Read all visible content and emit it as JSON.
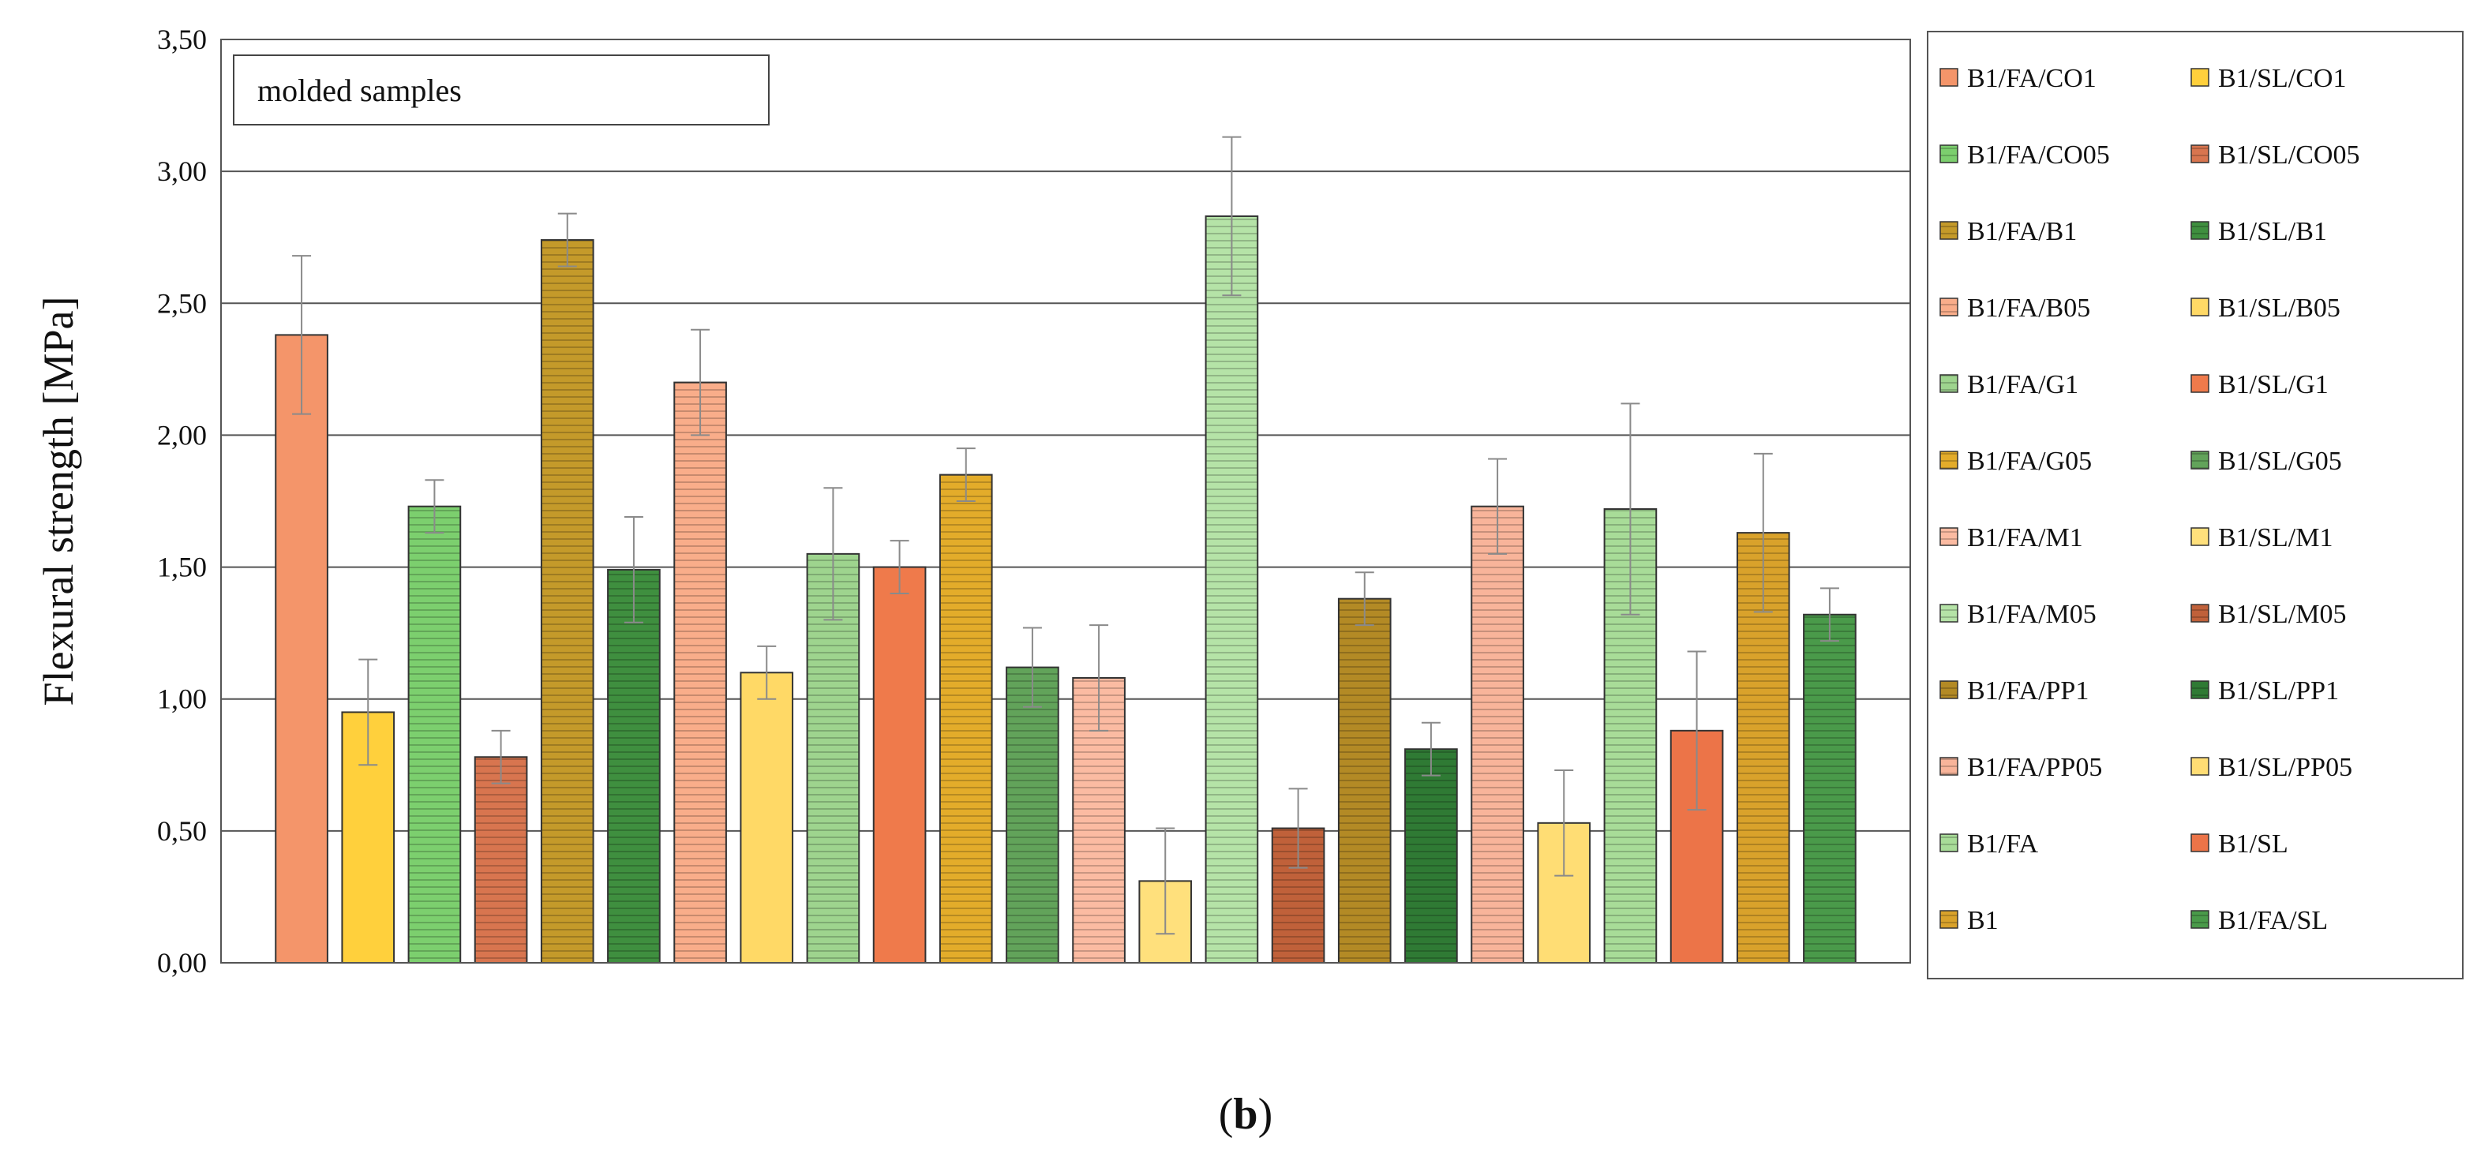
{
  "chart_data": {
    "type": "bar",
    "ylabel": "Flexural strength [MPa]",
    "ylim": [
      0,
      3.5
    ],
    "y_ticks": [
      "0,00",
      "0,50",
      "1,00",
      "1,50",
      "2,00",
      "2,50",
      "3,00",
      "3,50"
    ],
    "grid": "horizontal",
    "legend_position": "right",
    "annotation": "molded samples",
    "caption_letter": "b",
    "categories": [
      "B1/FA/CO1",
      "B1/SL/CO1",
      "B1/FA/CO05",
      "B1/SL/CO05",
      "B1/FA/B1",
      "B1/SL/B1",
      "B1/FA/B05",
      "B1/SL/B05",
      "B1/FA/G1",
      "B1/SL/G1",
      "B1/FA/G05",
      "B1/SL/G05",
      "B1/FA/M1",
      "B1/SL/M1",
      "B1/FA/M05",
      "B1/SL/M05",
      "B1/FA/PP1",
      "B1/SL/PP1",
      "B1/FA/PP05",
      "B1/SL/PP05",
      "B1/FA",
      "B1/SL",
      "B1",
      "B1/FA/SL"
    ],
    "values": [
      2.38,
      0.95,
      1.73,
      0.78,
      2.74,
      1.49,
      2.2,
      1.1,
      1.55,
      1.5,
      1.85,
      1.12,
      1.08,
      0.31,
      2.83,
      0.51,
      1.38,
      0.81,
      1.73,
      0.53,
      1.72,
      0.88,
      1.63,
      1.32
    ],
    "errors": [
      0.3,
      0.2,
      0.1,
      0.1,
      0.1,
      0.2,
      0.2,
      0.1,
      0.25,
      0.1,
      0.1,
      0.15,
      0.2,
      0.2,
      0.3,
      0.15,
      0.1,
      0.1,
      0.18,
      0.2,
      0.4,
      0.3,
      0.3,
      0.1
    ],
    "colors": [
      "#f4956a",
      "#ffd03c",
      "#7ccf6e",
      "#d8754f",
      "#c49a2a",
      "#3f8f3f",
      "#f9ad8a",
      "#ffd966",
      "#9ed48e",
      "#ef7a4b",
      "#e3ac2a",
      "#62a35a",
      "#fbbba2",
      "#ffe07c",
      "#b5e3a7",
      "#c0613a",
      "#b38a25",
      "#2f7a34",
      "#f8b49a",
      "#ffdd74",
      "#a8dc98",
      "#ec7448",
      "#d9a22b",
      "#4a9a4a"
    ],
    "striped": [
      false,
      false,
      true,
      true,
      true,
      true,
      true,
      false,
      true,
      false,
      true,
      true,
      true,
      false,
      true,
      true,
      true,
      true,
      true,
      false,
      true,
      false,
      true,
      true
    ],
    "legend_rows": [
      [
        "B1/FA/CO1",
        "B1/SL/CO1"
      ],
      [
        "B1/FA/CO05",
        "B1/SL/CO05"
      ],
      [
        "B1/FA/B1",
        "B1/SL/B1"
      ],
      [
        "B1/FA/B05",
        "B1/SL/B05"
      ],
      [
        "B1/FA/G1",
        "B1/SL/G1"
      ],
      [
        "B1/FA/G05",
        "B1/SL/G05"
      ],
      [
        "B1/FA/M1",
        "B1/SL/M1"
      ],
      [
        "B1/FA/M05",
        "B1/SL/M05"
      ],
      [
        "B1/FA/PP1",
        "B1/SL/PP1"
      ],
      [
        "B1/FA/PP05",
        "B1/SL/PP05"
      ],
      [
        "B1/FA",
        "B1/SL"
      ],
      [
        "B1",
        "B1/FA/SL"
      ]
    ]
  }
}
